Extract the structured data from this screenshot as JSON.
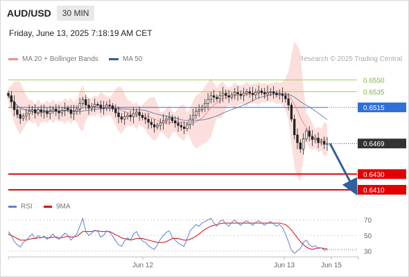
{
  "header": {
    "symbol": "AUD/USD",
    "timeframe": "30 MIN"
  },
  "timestamp": "Friday, June 13, 2025 7:18:19 AM CET",
  "source": "Research © 2025 Trading Central",
  "legend": {
    "ma20": "MA 20 + Bollinger Bands",
    "ma50": "MA 50",
    "ma20_color": "#f08c8c",
    "ma50_color": "#2b5c98"
  },
  "rsi_legend": {
    "rsi": "RSI",
    "ma9": "9MA",
    "rsi_color": "#5b7fd6",
    "ma9_color": "#e00000"
  },
  "colors": {
    "up": "#111111",
    "down": "#111111",
    "band": "#fbd9d6",
    "target": "#2f5f9e",
    "support": "#e00000",
    "resistance": "#9ccc65",
    "pivot": "#2f6fd6",
    "current": "#333333"
  },
  "chart_data": [
    {
      "type": "candlestick",
      "title": "AUD/USD 30 MIN",
      "ylim": [
        0.6403,
        0.6568
      ],
      "x_ticks": [
        "Jun 12",
        "Jun 13",
        "Jun 15"
      ],
      "levels": [
        {
          "label": "0.6550",
          "value": 0.655,
          "kind": "resistance"
        },
        {
          "label": "0.6535",
          "value": 0.6535,
          "kind": "resistance"
        },
        {
          "label": "0.6515",
          "value": 0.6515,
          "kind": "pivot"
        },
        {
          "label": "0.6469",
          "value": 0.6469,
          "kind": "current"
        },
        {
          "label": "0.6430",
          "value": 0.643,
          "kind": "support"
        },
        {
          "label": "0.6410",
          "value": 0.641,
          "kind": "support"
        }
      ],
      "closes": [
        0.653,
        0.6522,
        0.6512,
        0.6506,
        0.6501,
        0.6504,
        0.6507,
        0.651,
        0.6512,
        0.6508,
        0.6512,
        0.6509,
        0.651,
        0.6507,
        0.651,
        0.6513,
        0.651,
        0.6508,
        0.6511,
        0.6514,
        0.6512,
        0.6507,
        0.651,
        0.6513,
        0.652,
        0.6525,
        0.6518,
        0.6514,
        0.6516,
        0.6519,
        0.6518,
        0.6514,
        0.6515,
        0.6518,
        0.6517,
        0.6513,
        0.6508,
        0.6503,
        0.65,
        0.6503,
        0.6505,
        0.6503,
        0.6507,
        0.6509,
        0.6505,
        0.6502,
        0.65,
        0.6496,
        0.6493,
        0.649,
        0.6492,
        0.6495,
        0.6498,
        0.65,
        0.6502,
        0.6498,
        0.6495,
        0.6492,
        0.649,
        0.6488,
        0.6493,
        0.65,
        0.6505,
        0.651,
        0.6512,
        0.6515,
        0.652,
        0.6525,
        0.653,
        0.6528,
        0.6526,
        0.653,
        0.6533,
        0.653,
        0.6528,
        0.6531,
        0.6534,
        0.6532,
        0.653,
        0.6533,
        0.6535,
        0.6533,
        0.6531,
        0.6534,
        0.6536,
        0.6534,
        0.6532,
        0.6534,
        0.6535,
        0.6533,
        0.6531,
        0.6532,
        0.653,
        0.6526,
        0.6518,
        0.65,
        0.648,
        0.647,
        0.6462,
        0.6475,
        0.6485,
        0.6478,
        0.6474,
        0.6476,
        0.647,
        0.6472,
        0.6468,
        0.6469
      ],
      "ma20_band_half_width": 0.001,
      "target_arrow": {
        "from": 0.6469,
        "to": 0.6412
      }
    },
    {
      "type": "line",
      "title": "RSI",
      "ylim": [
        25,
        75
      ],
      "y_ticks": [
        70,
        50,
        30
      ],
      "series": [
        {
          "name": "RSI",
          "values": [
            55,
            50,
            42,
            38,
            35,
            41,
            44,
            48,
            52,
            46,
            50,
            47,
            49,
            45,
            48,
            52,
            47,
            45,
            49,
            53,
            50,
            44,
            48,
            52,
            62,
            72,
            55,
            50,
            53,
            57,
            55,
            48,
            50,
            56,
            54,
            49,
            43,
            38,
            36,
            43,
            47,
            44,
            52,
            55,
            48,
            43,
            41,
            37,
            34,
            32,
            38,
            45,
            50,
            54,
            56,
            48,
            44,
            40,
            38,
            36,
            46,
            56,
            60,
            64,
            62,
            66,
            68,
            70,
            72,
            66,
            62,
            68,
            70,
            65,
            62,
            67,
            70,
            66,
            63,
            67,
            69,
            66,
            63,
            67,
            69,
            66,
            63,
            66,
            68,
            65,
            62,
            64,
            60,
            52,
            42,
            31,
            27,
            30,
            33,
            41,
            44,
            38,
            35,
            37,
            33,
            34,
            31,
            32
          ]
        },
        {
          "name": "9MA",
          "values": [
            52,
            50,
            48,
            46,
            44,
            44,
            44,
            45,
            46,
            46,
            47,
            47,
            48,
            47,
            47,
            48,
            48,
            47,
            47,
            48,
            49,
            48,
            48,
            49,
            52,
            55,
            55,
            55,
            55,
            56,
            56,
            55,
            55,
            55,
            55,
            53,
            51,
            49,
            47,
            46,
            45,
            44,
            45,
            46,
            46,
            46,
            45,
            44,
            43,
            42,
            41,
            41,
            41,
            42,
            44,
            46,
            46,
            46,
            45,
            44,
            44,
            45,
            47,
            49,
            52,
            55,
            58,
            60,
            62,
            63,
            64,
            65,
            66,
            66,
            66,
            66,
            66,
            66,
            66,
            66,
            66,
            66,
            66,
            66,
            66,
            66,
            66,
            66,
            66,
            66,
            66,
            66,
            65,
            64,
            61,
            57,
            52,
            47,
            42,
            38,
            35,
            33,
            32,
            33,
            34,
            34,
            33,
            33
          ]
        }
      ]
    }
  ]
}
